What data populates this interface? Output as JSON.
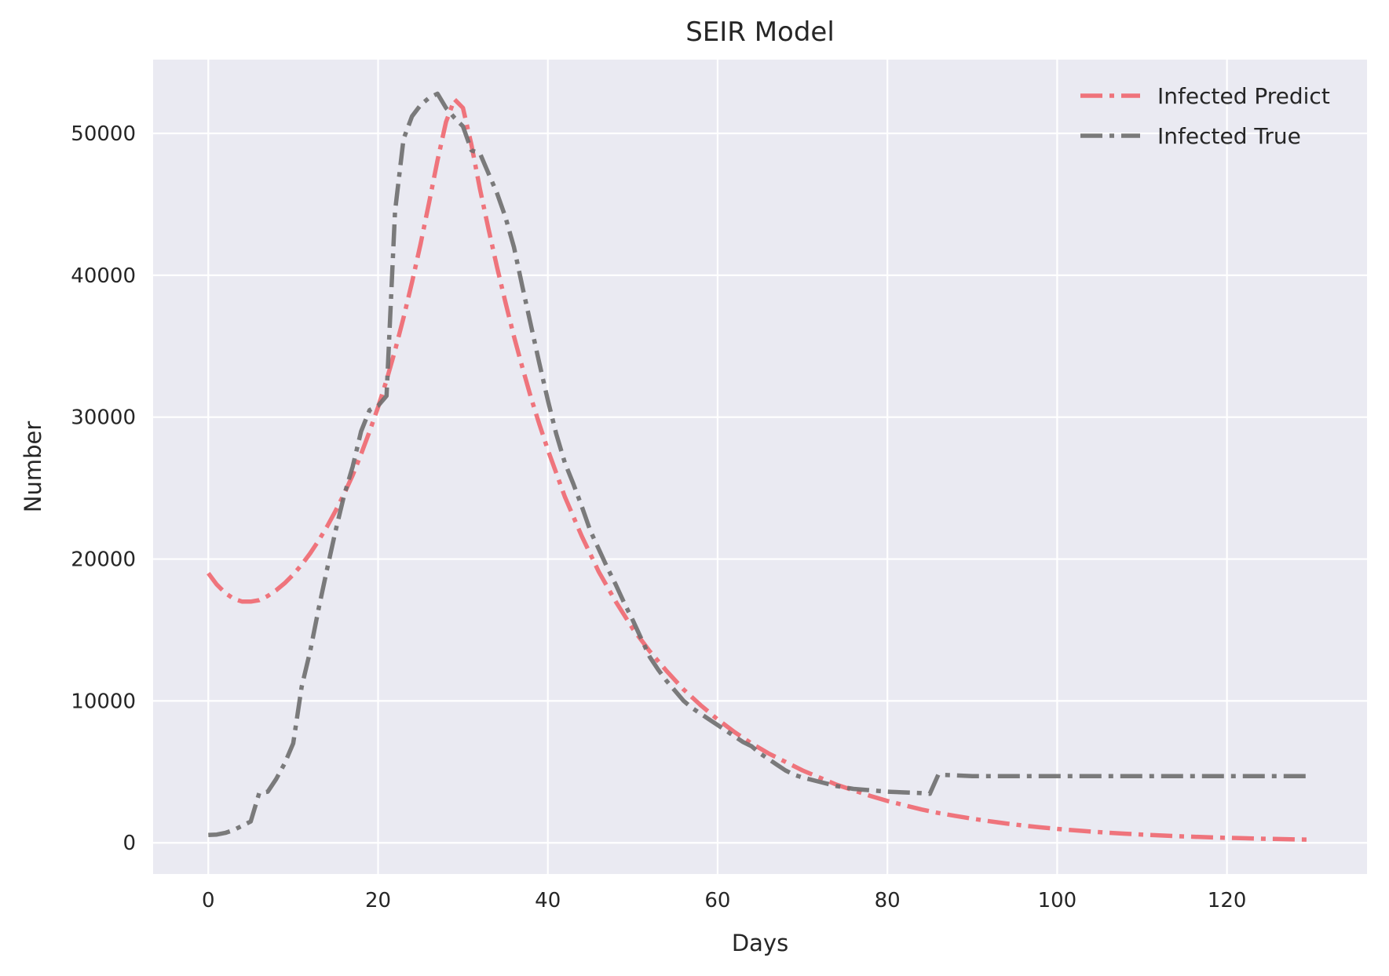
{
  "chart_data": {
    "type": "line",
    "title": "SEIR Model",
    "xlabel": "Days",
    "ylabel": "Number",
    "xlim": [
      -6.5,
      136.5
    ],
    "ylim": [
      -2200,
      55200
    ],
    "xticks": [
      0,
      20,
      40,
      60,
      80,
      100,
      120
    ],
    "yticks": [
      0,
      10000,
      20000,
      30000,
      40000,
      50000
    ],
    "xtick_labels": [
      "0",
      "20",
      "40",
      "60",
      "80",
      "100",
      "120"
    ],
    "ytick_labels": [
      "0",
      "10000",
      "20000",
      "30000",
      "40000",
      "50000"
    ],
    "grid": true,
    "legend_position": "top-right",
    "background_color": "#eaeaf2",
    "series": [
      {
        "name": "Infected Predict",
        "color": "#f0676f",
        "line_style": "dash-dot",
        "x": [
          0,
          1,
          2,
          3,
          4,
          5,
          6,
          7,
          8,
          9,
          10,
          11,
          12,
          13,
          14,
          15,
          16,
          17,
          18,
          19,
          20,
          21,
          22,
          23,
          24,
          25,
          26,
          27,
          28,
          29,
          30,
          31,
          32,
          33,
          34,
          35,
          36,
          37,
          38,
          39,
          40,
          42,
          44,
          46,
          48,
          50,
          52,
          54,
          56,
          58,
          60,
          62,
          64,
          66,
          68,
          70,
          72,
          74,
          76,
          78,
          80,
          82,
          84,
          86,
          88,
          90,
          92,
          94,
          96,
          98,
          100,
          102,
          104,
          106,
          108,
          110,
          112,
          114,
          116,
          118,
          120,
          122,
          124,
          126,
          128,
          130
        ],
        "y": [
          19000,
          18200,
          17600,
          17200,
          17000,
          17000,
          17100,
          17400,
          17800,
          18300,
          18900,
          19600,
          20400,
          21300,
          22300,
          23400,
          24600,
          25900,
          27400,
          29000,
          30700,
          32600,
          34700,
          37000,
          39500,
          42200,
          45100,
          48100,
          50800,
          52400,
          51800,
          49200,
          46100,
          43300,
          40600,
          38100,
          35700,
          33500,
          31400,
          29500,
          27700,
          24400,
          21600,
          19100,
          17000,
          15100,
          13500,
          12100,
          10800,
          9700,
          8700,
          7800,
          7000,
          6300,
          5700,
          5100,
          4600,
          4100,
          3700,
          3300,
          2950,
          2650,
          2350,
          2100,
          1900,
          1700,
          1520,
          1360,
          1220,
          1090,
          980,
          880,
          790,
          710,
          640,
          575,
          520,
          470,
          425,
          385,
          350,
          320,
          290,
          265,
          240,
          220
        ]
      },
      {
        "name": "Infected True",
        "color": "#6e6e6e",
        "line_style": "dash-dot",
        "x": [
          0,
          1,
          2,
          3,
          4,
          5,
          6,
          7,
          8,
          9,
          10,
          11,
          12,
          13,
          14,
          15,
          16,
          17,
          18,
          19,
          20,
          21,
          22,
          23,
          24,
          25,
          26,
          27,
          28,
          29,
          30,
          31,
          32,
          33,
          34,
          35,
          36,
          37,
          38,
          39,
          40,
          41,
          42,
          43,
          44,
          45,
          46,
          47,
          48,
          49,
          50,
          51,
          52,
          53,
          54,
          55,
          56,
          57,
          58,
          59,
          60,
          61,
          62,
          63,
          64,
          65,
          66,
          67,
          68,
          69,
          70,
          72,
          74,
          76,
          78,
          80,
          82,
          84,
          85,
          86,
          88,
          90,
          95,
          100,
          105,
          110,
          115,
          120,
          125,
          130
        ],
        "y": [
          550,
          580,
          700,
          900,
          1200,
          1500,
          3500,
          3600,
          4500,
          5600,
          7000,
          11000,
          13500,
          16500,
          19300,
          22000,
          24500,
          26500,
          29000,
          30500,
          30800,
          31500,
          44500,
          49600,
          51200,
          52000,
          52500,
          52800,
          51800,
          51100,
          50500,
          48800,
          48600,
          47200,
          45800,
          44100,
          42000,
          39200,
          36500,
          33800,
          31200,
          28800,
          26800,
          25300,
          23700,
          22000,
          20700,
          19400,
          18200,
          16900,
          15700,
          14400,
          13100,
          12200,
          11400,
          10700,
          10000,
          9500,
          9100,
          8700,
          8300,
          7900,
          7500,
          7100,
          6800,
          6300,
          5900,
          5500,
          5100,
          4800,
          4600,
          4300,
          4000,
          3800,
          3700,
          3600,
          3550,
          3500,
          3450,
          4800,
          4750,
          4700,
          4700,
          4700,
          4700,
          4700,
          4700,
          4700,
          4700,
          4700
        ]
      }
    ]
  }
}
